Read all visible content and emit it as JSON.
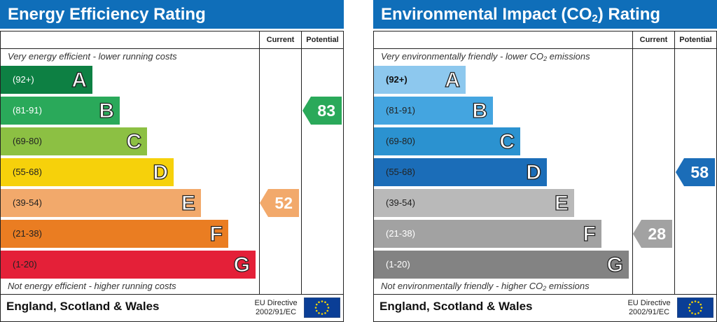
{
  "chart_data": [
    {
      "type": "bar",
      "title": "Energy Efficiency Rating",
      "top_note": "Very energy efficient - lower running costs",
      "bottom_note": "Not energy efficient - higher running costs",
      "column_headers": [
        "Current",
        "Potential"
      ],
      "bands": [
        {
          "range": "(92+)",
          "letter": "A",
          "color": "#0d8043",
          "text_color": "#ffffff"
        },
        {
          "range": "(81-91)",
          "letter": "B",
          "color": "#2aa95a",
          "text_color": "#ffffff"
        },
        {
          "range": "(69-80)",
          "letter": "C",
          "color": "#8cc043",
          "text_color": "#222222"
        },
        {
          "range": "(55-68)",
          "letter": "D",
          "color": "#f6d10b",
          "text_color": "#222222"
        },
        {
          "range": "(39-54)",
          "letter": "E",
          "color": "#f2a96b",
          "text_color": "#222222"
        },
        {
          "range": "(21-38)",
          "letter": "F",
          "color": "#ea7d22",
          "text_color": "#222222"
        },
        {
          "range": "(1-20)",
          "letter": "G",
          "color": "#e42038",
          "text_color": "#222222"
        }
      ],
      "current": {
        "value": 52,
        "band": "E",
        "color": "#f2a96b"
      },
      "potential": {
        "value": 83,
        "band": "B",
        "color": "#2aa95a"
      },
      "footer": {
        "country": "England, Scotland & Wales",
        "directive_line1": "EU Directive",
        "directive_line2": "2002/91/EC"
      }
    },
    {
      "type": "bar",
      "title_main": "Environmental Impact (CO",
      "title_sub": "2",
      "title_end": ") Rating",
      "top_note_main": "Very environmentally friendly - lower CO",
      "top_note_sub": "2",
      "top_note_end": " emissions",
      "bottom_note_main": "Not environmentally friendly - higher CO",
      "bottom_note_sub": "2",
      "bottom_note_end": " emissions",
      "column_headers": [
        "Current",
        "Potential"
      ],
      "bands": [
        {
          "range": "(92+)",
          "letter": "A",
          "color": "#8dc8ee",
          "text_color": "#111111"
        },
        {
          "range": "(81-91)",
          "letter": "B",
          "color": "#44a5e0",
          "text_color": "#222222"
        },
        {
          "range": "(69-80)",
          "letter": "C",
          "color": "#2b92d0",
          "text_color": "#222222"
        },
        {
          "range": "(55-68)",
          "letter": "D",
          "color": "#1b6db8",
          "text_color": "#222222"
        },
        {
          "range": "(39-54)",
          "letter": "E",
          "color": "#b9b9b9",
          "text_color": "#222222"
        },
        {
          "range": "(21-38)",
          "letter": "F",
          "color": "#a2a2a2",
          "text_color": "#ffffff"
        },
        {
          "range": "(1-20)",
          "letter": "G",
          "color": "#838383",
          "text_color": "#ffffff"
        }
      ],
      "current": {
        "value": 28,
        "band": "F",
        "color": "#a2a2a2"
      },
      "potential": {
        "value": 58,
        "band": "D",
        "color": "#1b6db8"
      },
      "footer": {
        "country": "England, Scotland & Wales",
        "directive_line1": "EU Directive",
        "directive_line2": "2002/91/EC"
      }
    }
  ],
  "eu_flag": {
    "icon": "eu-flag-icon",
    "background": "#0a3e96",
    "star_color": "#f5d400"
  }
}
